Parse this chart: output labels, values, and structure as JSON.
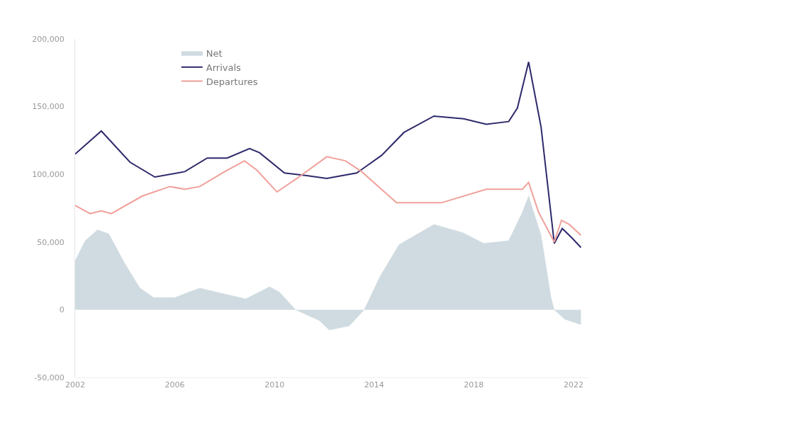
{
  "chart_data": {
    "type": "line",
    "xlim": [
      2002,
      2022.6
    ],
    "xticks": [
      2002,
      2006,
      2010,
      2014,
      2018,
      2022
    ],
    "ylim": [
      -50000,
      200000
    ],
    "yticks": [
      {
        "value": -50000,
        "label": "-50,000"
      },
      {
        "value": 0,
        "label": "0"
      },
      {
        "value": 50000,
        "label": "50,000"
      },
      {
        "value": 100000,
        "label": "100,000"
      },
      {
        "value": 150000,
        "label": "150,000"
      },
      {
        "value": 200000,
        "label": "200,000"
      }
    ],
    "grid": false,
    "legend": "top left",
    "marker": "none",
    "series": [
      {
        "name": "Net",
        "type": "area",
        "color": "#cfdbe0",
        "x": [
          2002.0,
          2002.4,
          2002.9,
          2003.35,
          2004.0,
          2004.6,
          2005.15,
          2006.0,
          2007.0,
          2007.9,
          2008.85,
          2009.8,
          2010.2,
          2010.85,
          2011.8,
          2012.2,
          2013.0,
          2013.6,
          2014.25,
          2015.0,
          2016.4,
          2017.55,
          2018.4,
          2019.4,
          2019.95,
          2020.2,
          2020.7,
          2021.1,
          2021.23,
          2021.65,
          2022.3
        ],
        "values": [
          36000,
          51000,
          59000,
          56000,
          34000,
          16000,
          9000,
          9000,
          16000,
          12000,
          8000,
          17000,
          13000,
          0,
          -8000,
          -15000,
          -12000,
          0,
          25000,
          48000,
          63000,
          57000,
          49000,
          51000,
          72000,
          84000,
          55000,
          9000,
          0,
          -7000,
          -11000
        ]
      },
      {
        "name": "Arrivals",
        "color": "#2e2a6b",
        "x": [
          2002.0,
          2003.05,
          2004.2,
          2005.2,
          2006.4,
          2007.3,
          2008.1,
          2009.0,
          2009.4,
          2010.4,
          2011.3,
          2012.1,
          2012.4,
          2013.3,
          2014.3,
          2015.2,
          2016.4,
          2017.6,
          2018.5,
          2019.4,
          2019.75,
          2020.2,
          2020.7,
          2021.23,
          2021.55,
          2021.94,
          2022.3
        ],
        "values": [
          115000,
          132000,
          109000,
          98000,
          102000,
          112000,
          112000,
          119000,
          116000,
          101000,
          99000,
          97000,
          98000,
          101000,
          114000,
          131000,
          143000,
          141000,
          137000,
          139000,
          149000,
          183000,
          135000,
          49000,
          60000,
          53000,
          46000
        ]
      },
      {
        "name": "Departures",
        "color": "#f0a09a",
        "x": [
          2002.0,
          2002.6,
          2003.05,
          2003.45,
          2004.7,
          2005.8,
          2006.4,
          2007.0,
          2008.0,
          2008.8,
          2009.3,
          2010.1,
          2010.9,
          2012.1,
          2012.85,
          2013.5,
          2014.9,
          2016.7,
          2018.5,
          2019.95,
          2020.2,
          2020.6,
          2021.23,
          2021.52,
          2021.83,
          2022.3
        ],
        "values": [
          77000,
          71000,
          73000,
          71000,
          84000,
          91000,
          89000,
          91000,
          102000,
          110000,
          103000,
          87000,
          97000,
          113000,
          110000,
          102000,
          79000,
          79000,
          89000,
          89000,
          94000,
          72000,
          50000,
          66000,
          63000,
          55000
        ]
      }
    ]
  }
}
